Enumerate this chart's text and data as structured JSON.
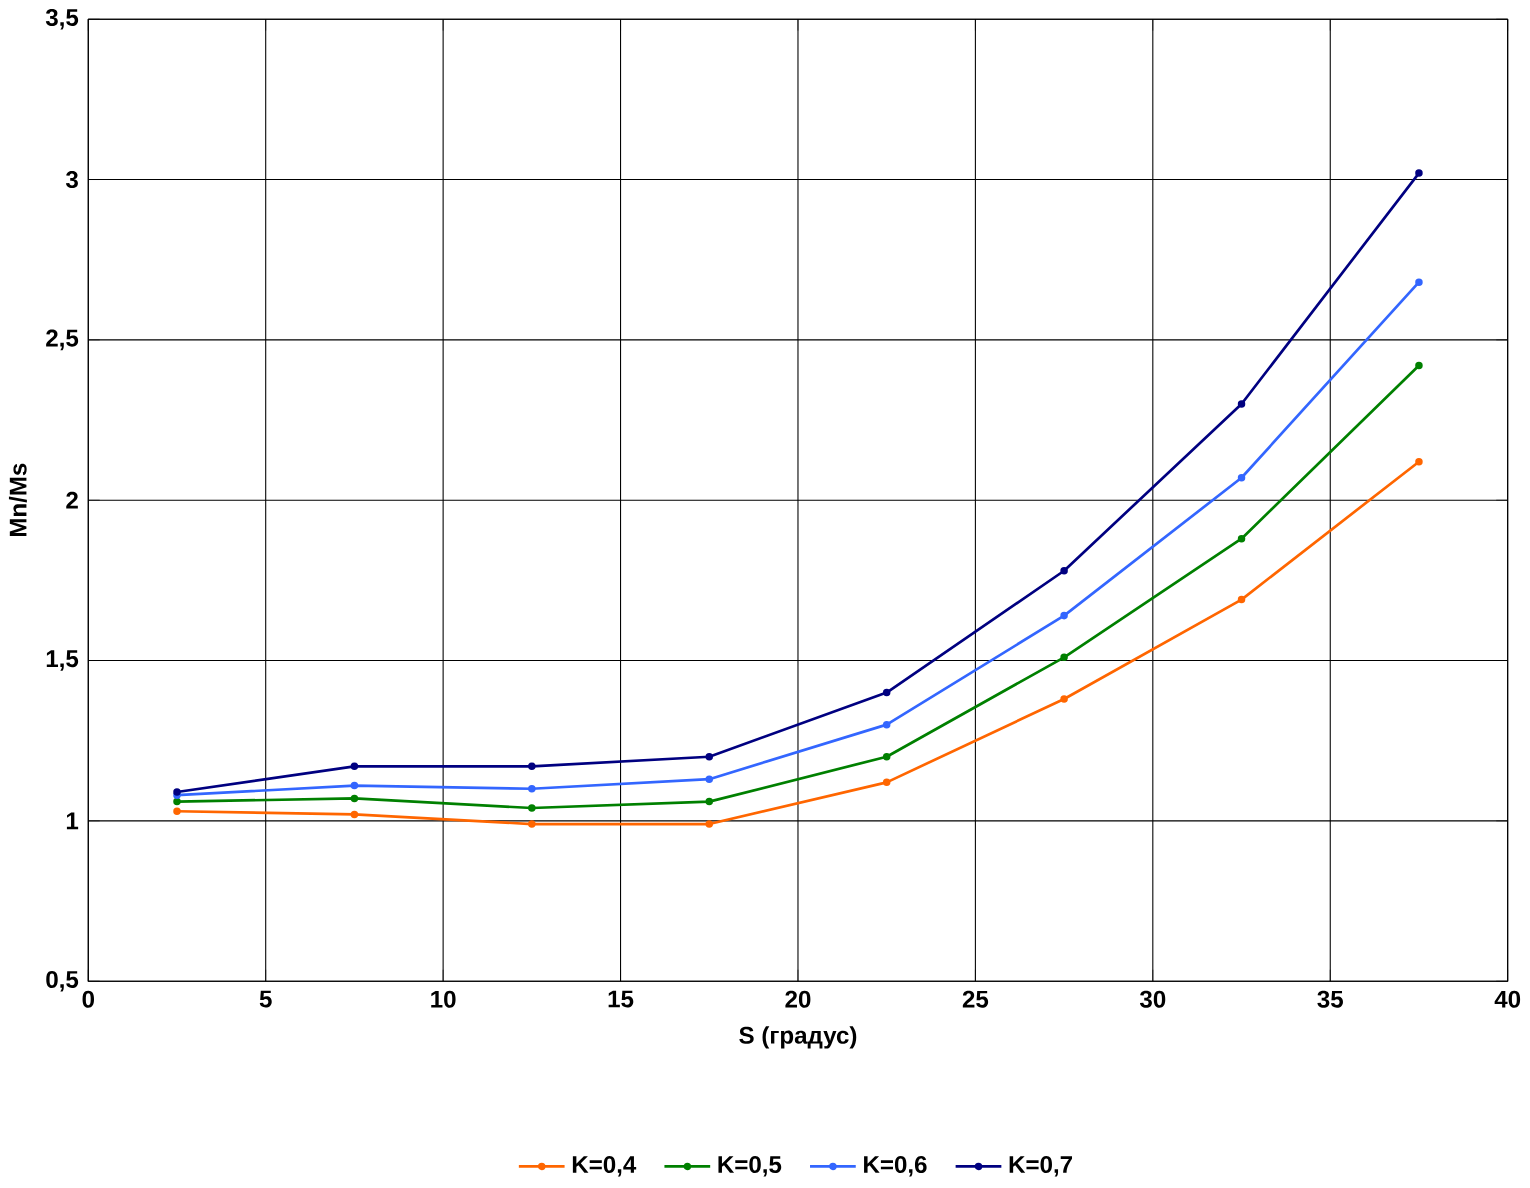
{
  "chart_data": {
    "type": "line",
    "xlabel": "S (градус)",
    "ylabel": "Mn/Ms",
    "x": [
      2.5,
      7.5,
      12.5,
      17.5,
      22.5,
      27.5,
      32.5,
      37.5
    ],
    "series": [
      {
        "name": "K=0,4",
        "color": "#ff6600",
        "values": [
          1.03,
          1.02,
          0.99,
          0.99,
          1.12,
          1.38,
          1.69,
          2.12
        ]
      },
      {
        "name": "K=0,5",
        "color": "#008000",
        "values": [
          1.06,
          1.07,
          1.04,
          1.06,
          1.2,
          1.51,
          1.88,
          2.42
        ]
      },
      {
        "name": "K=0,6",
        "color": "#3366ff",
        "values": [
          1.08,
          1.11,
          1.1,
          1.13,
          1.3,
          1.64,
          2.07,
          2.68
        ]
      },
      {
        "name": "K=0,7",
        "color": "#000080",
        "values": [
          1.09,
          1.17,
          1.17,
          1.2,
          1.4,
          1.78,
          2.3,
          3.02
        ]
      }
    ],
    "xlim": [
      0,
      40
    ],
    "xticks": [
      0,
      5,
      10,
      15,
      20,
      25,
      30,
      35,
      40
    ],
    "ylim": [
      0.5,
      3.5
    ],
    "yticks": [
      {
        "value": 0.5,
        "label": "0,5"
      },
      1,
      {
        "value": 1.5,
        "label": "1,5"
      },
      2,
      {
        "value": 2.5,
        "label": "2,5"
      },
      3,
      {
        "value": 3.5,
        "label": "3,5"
      }
    ],
    "grid": true,
    "legend": "bottom",
    "marker": "circle",
    "line_style": "solid"
  }
}
